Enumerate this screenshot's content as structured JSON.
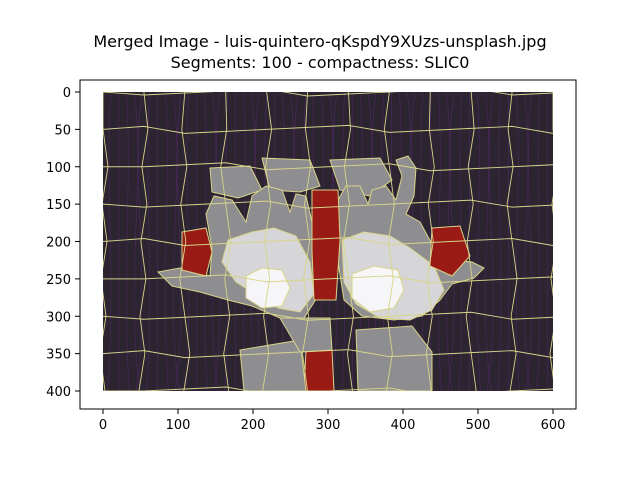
{
  "figure": {
    "title_line1": "Merged Image - luis-quintero-qKspdY9XUzs-unsplash.jpg",
    "title_line2": "Segments: 100 - compactness: SLIC0"
  },
  "chart_data": {
    "type": "image",
    "title": "Merged Image - luis-quintero-qKspdY9XUzs-unsplash.jpg\nSegments: 100 - compactness: SLIC0",
    "xlim": [
      0,
      600
    ],
    "ylim": [
      400,
      0
    ],
    "xticks": [
      0,
      100,
      200,
      300,
      400,
      500,
      600
    ],
    "yticks": [
      0,
      50,
      100,
      150,
      200,
      250,
      300,
      350,
      400
    ],
    "grid": false,
    "colors": {
      "background": "#2c2430",
      "grain": "#6a2d8a",
      "boundary": "#d8d48a",
      "hand_gray": "#8e8e90",
      "hand_light": "#d6d6d8",
      "palm_white": "#f6f6f8",
      "red": "#9a1a16"
    }
  }
}
